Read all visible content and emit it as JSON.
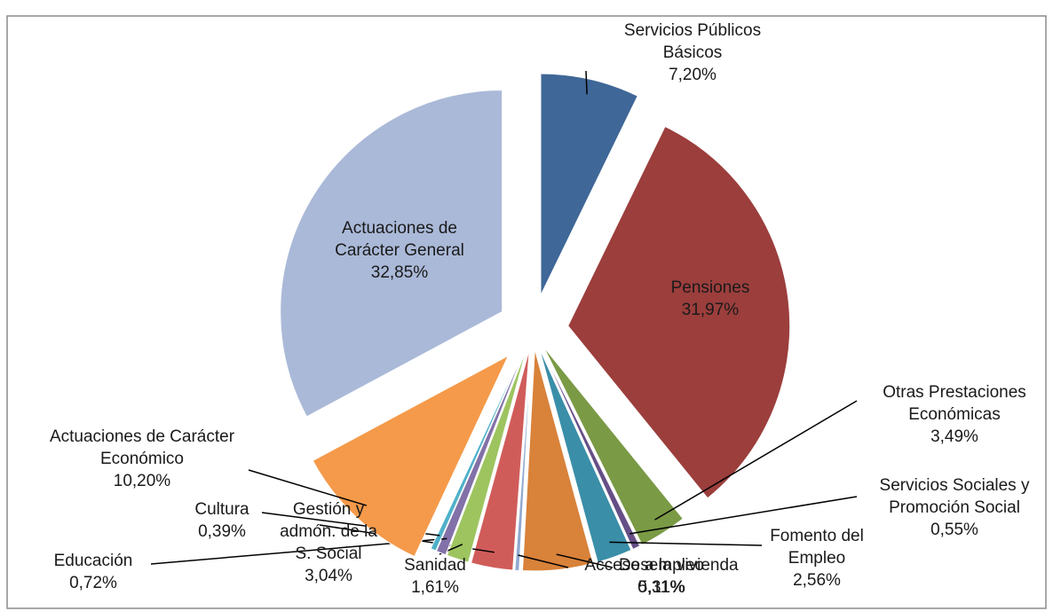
{
  "chart_data": {
    "type": "pie",
    "categories": [
      "Servicios Públicos Básicos",
      "Pensiones",
      "Otras Prestaciones Económicas",
      "Servicios Sociales y Promoción Social",
      "Fomento del Empleo",
      "Desempleo",
      "Acceso a la vivienda",
      "Gestión y admón. de la S. Social",
      "Sanidad",
      "Educación",
      "Cultura",
      "Actuaciones de Carácter Económico",
      "Actuaciones de Carácter General"
    ],
    "values": [
      7.2,
      31.97,
      3.49,
      0.55,
      2.56,
      5.11,
      0.31,
      3.04,
      1.61,
      0.72,
      0.39,
      10.2,
      32.85
    ],
    "value_labels": [
      "7,20%",
      "31,97%",
      "3,49%",
      "0,55%",
      "2,56%",
      "5,11%",
      "0,31%",
      "3,04%",
      "1,61%",
      "0,72%",
      "0,39%",
      "10,20%",
      "32,85%"
    ],
    "colors": [
      "#3f6797",
      "#9b3e3c",
      "#7a9a45",
      "#664f86",
      "#3a8ea8",
      "#d8823a",
      "#8fa8d0",
      "#d05c5a",
      "#9dc45f",
      "#8271a8",
      "#4fb1c9",
      "#f59a4a",
      "#aab9d8"
    ]
  }
}
